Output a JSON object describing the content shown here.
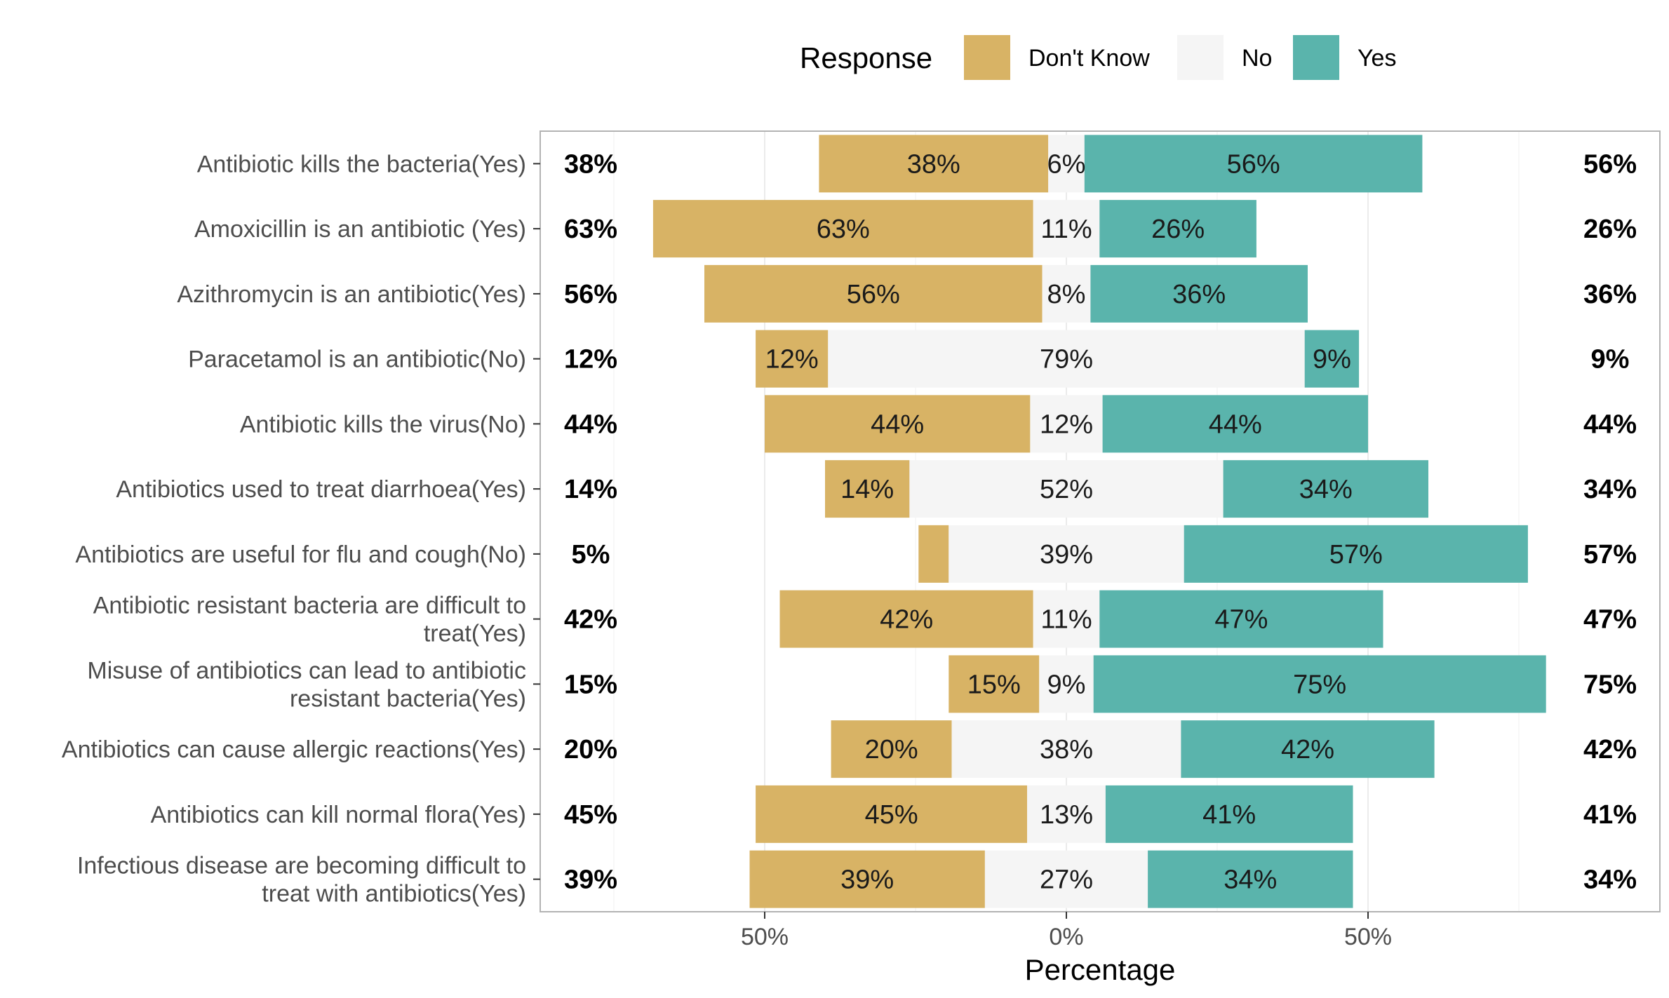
{
  "chart_data": {
    "type": "bar",
    "orientation": "horizontal",
    "stacking": "diverging",
    "xlabel": "Percentage",
    "ylabel": "",
    "xlim": [
      -75,
      98
    ],
    "x_ticks": [
      -50,
      0,
      50
    ],
    "x_tick_labels": [
      "50%",
      "0%",
      "50%"
    ],
    "grid": true,
    "legend": {
      "title": "Response",
      "position": "top",
      "entries": [
        "Don't Know",
        "No",
        "Yes"
      ]
    },
    "colors": {
      "Don't Know": "#d8b365",
      "No": "#f5f5f5",
      "Yes": "#5ab4ac"
    },
    "categories": [
      "Antibiotic kills the bacteria(Yes)",
      "Amoxicillin is an antibiotic (Yes)",
      "Azithromycin is an antibiotic(Yes)",
      "Paracetamol is an antibiotic(No)",
      "Antibiotic kills the virus(No)",
      "Antibiotics used to treat diarrhoea(Yes)",
      "Antibiotics are useful for flu and cough(No)",
      "Antibiotic resistant bacteria are difficult to treat(Yes)",
      "Misuse of antibiotics can lead to antibiotic resistant bacteria(Yes)",
      "Antibiotics can cause allergic reactions(Yes)",
      "Antibiotics can kill normal flora(Yes)",
      "Infectious disease are becoming difficult to treat with antibiotics(Yes)"
    ],
    "category_lines": [
      [
        "Antibiotic kills the bacteria(Yes)"
      ],
      [
        "Amoxicillin is an antibiotic (Yes)"
      ],
      [
        "Azithromycin is an antibiotic(Yes)"
      ],
      [
        "Paracetamol is an antibiotic(No)"
      ],
      [
        "Antibiotic kills the virus(No)"
      ],
      [
        "Antibiotics used to treat diarrhoea(Yes)"
      ],
      [
        "Antibiotics are useful for flu and cough(No)"
      ],
      [
        "Antibiotic resistant bacteria are difficult to",
        "treat(Yes)"
      ],
      [
        "Misuse of antibiotics can lead to antibiotic",
        "resistant bacteria(Yes)"
      ],
      [
        "Antibiotics can cause allergic reactions(Yes)"
      ],
      [
        "Antibiotics can kill normal flora(Yes)"
      ],
      [
        "Infectious disease are becoming difficult to",
        "treat with antibiotics(Yes)"
      ]
    ],
    "series": [
      {
        "name": "Don't Know",
        "values": [
          38,
          63,
          56,
          12,
          44,
          14,
          5,
          42,
          15,
          20,
          45,
          39
        ]
      },
      {
        "name": "No",
        "values": [
          6,
          11,
          8,
          79,
          12,
          52,
          39,
          11,
          9,
          38,
          13,
          27
        ]
      },
      {
        "name": "Yes",
        "values": [
          56,
          26,
          36,
          9,
          44,
          34,
          57,
          47,
          75,
          42,
          41,
          34
        ]
      }
    ],
    "left_summary": [
      "38%",
      "63%",
      "56%",
      "12%",
      "44%",
      "14%",
      "5%",
      "42%",
      "15%",
      "20%",
      "45%",
      "39%"
    ],
    "right_summary": [
      "56%",
      "26%",
      "36%",
      "9%",
      "44%",
      "34%",
      "57%",
      "47%",
      "75%",
      "42%",
      "41%",
      "34%"
    ]
  }
}
